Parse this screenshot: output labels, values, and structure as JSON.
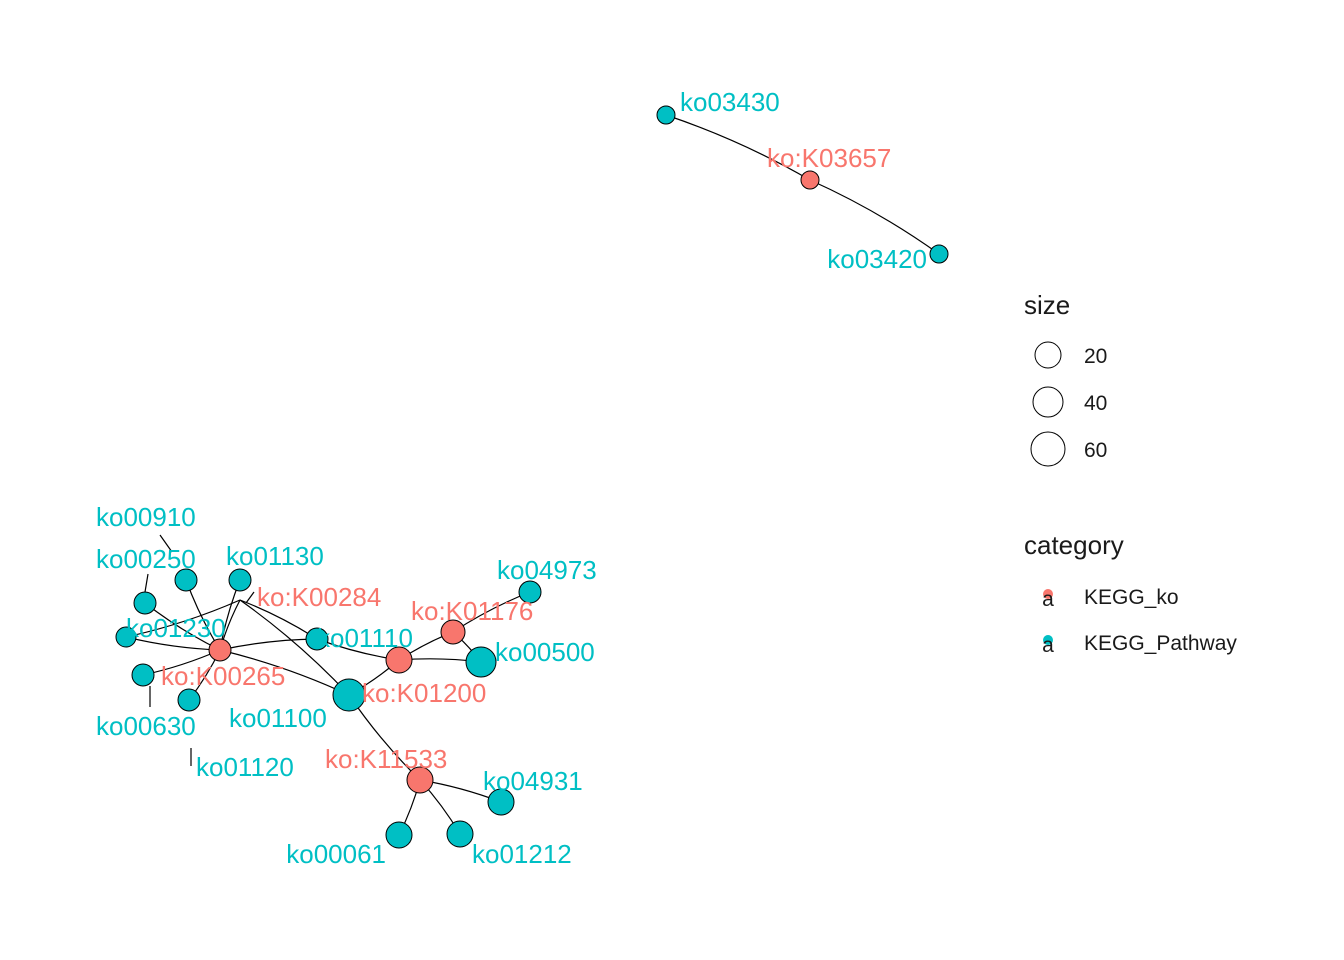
{
  "colors": {
    "ko": "#F8766D",
    "pathway": "#00BFC4",
    "edge": "#000000"
  },
  "nodes": [
    {
      "id": "ko03430",
      "label": "ko03430",
      "category": "KEGG_Pathway"
    },
    {
      "id": "ko:K03657",
      "label": "ko:K03657",
      "category": "KEGG_ko"
    },
    {
      "id": "ko03420",
      "label": "ko03420",
      "category": "KEGG_Pathway"
    },
    {
      "id": "ko00910",
      "label": "ko00910",
      "category": "KEGG_Pathway"
    },
    {
      "id": "ko00250",
      "label": "ko00250",
      "category": "KEGG_Pathway"
    },
    {
      "id": "ko01130",
      "label": "ko01130",
      "category": "KEGG_Pathway"
    },
    {
      "id": "ko:K00284",
      "label": "ko:K00284",
      "category": "KEGG_ko"
    },
    {
      "id": "ko01230",
      "label": "ko01230",
      "category": "KEGG_Pathway"
    },
    {
      "id": "ko:K00265",
      "label": "ko:K00265",
      "category": "KEGG_ko"
    },
    {
      "id": "ko00630",
      "label": "ko00630",
      "category": "KEGG_Pathway"
    },
    {
      "id": "ko01120",
      "label": "ko01120",
      "category": "KEGG_Pathway"
    },
    {
      "id": "ko01100",
      "label": "ko01100",
      "category": "KEGG_Pathway"
    },
    {
      "id": "ko01110",
      "label": "ko01110",
      "category": "KEGG_Pathway"
    },
    {
      "id": "ko:K01200",
      "label": "ko:K01200",
      "category": "KEGG_ko"
    },
    {
      "id": "ko:K01176",
      "label": "ko:K01176",
      "category": "KEGG_ko"
    },
    {
      "id": "ko04973",
      "label": "ko04973",
      "category": "KEGG_Pathway"
    },
    {
      "id": "ko00500",
      "label": "ko00500",
      "category": "KEGG_Pathway"
    },
    {
      "id": "ko:K11533",
      "label": "ko:K11533",
      "category": "KEGG_ko"
    },
    {
      "id": "ko04931",
      "label": "ko04931",
      "category": "KEGG_Pathway"
    },
    {
      "id": "ko00061",
      "label": "ko00061",
      "category": "KEGG_Pathway"
    },
    {
      "id": "ko01212",
      "label": "ko01212",
      "category": "KEGG_Pathway"
    }
  ],
  "edges": [
    [
      "ko03430",
      "ko:K03657"
    ],
    [
      "ko:K03657",
      "ko03420"
    ],
    [
      "ko:K00265",
      "ko00910"
    ],
    [
      "ko:K00265",
      "ko00250"
    ],
    [
      "ko:K00265",
      "ko01130"
    ],
    [
      "ko:K00265",
      "ko:K00284"
    ],
    [
      "ko:K00265",
      "ko01230"
    ],
    [
      "ko:K00265",
      "ko00630"
    ],
    [
      "ko:K00265",
      "ko01120"
    ],
    [
      "ko:K00265",
      "ko01100"
    ],
    [
      "ko:K00265",
      "ko01110"
    ],
    [
      "ko:K00284",
      "ko01230"
    ],
    [
      "ko:K00284",
      "ko01110"
    ],
    [
      "ko:K00284",
      "ko01100"
    ],
    [
      "ko:K01200",
      "ko01100"
    ],
    [
      "ko:K01200",
      "ko01110"
    ],
    [
      "ko:K01200",
      "ko00500"
    ],
    [
      "ko:K01200",
      "ko:K01176"
    ],
    [
      "ko:K01176",
      "ko04973"
    ],
    [
      "ko:K01176",
      "ko00500"
    ],
    [
      "ko:K11533",
      "ko01100"
    ],
    [
      "ko:K11533",
      "ko04931"
    ],
    [
      "ko:K11533",
      "ko00061"
    ],
    [
      "ko:K11533",
      "ko01212"
    ]
  ],
  "legend": {
    "size": {
      "title": "size",
      "items": [
        "20",
        "40",
        "60"
      ]
    },
    "category": {
      "title": "category",
      "glyph": "a",
      "items": [
        {
          "label": "KEGG_ko",
          "category": "KEGG_ko"
        },
        {
          "label": "KEGG_Pathway",
          "category": "KEGG_Pathway"
        }
      ]
    }
  }
}
